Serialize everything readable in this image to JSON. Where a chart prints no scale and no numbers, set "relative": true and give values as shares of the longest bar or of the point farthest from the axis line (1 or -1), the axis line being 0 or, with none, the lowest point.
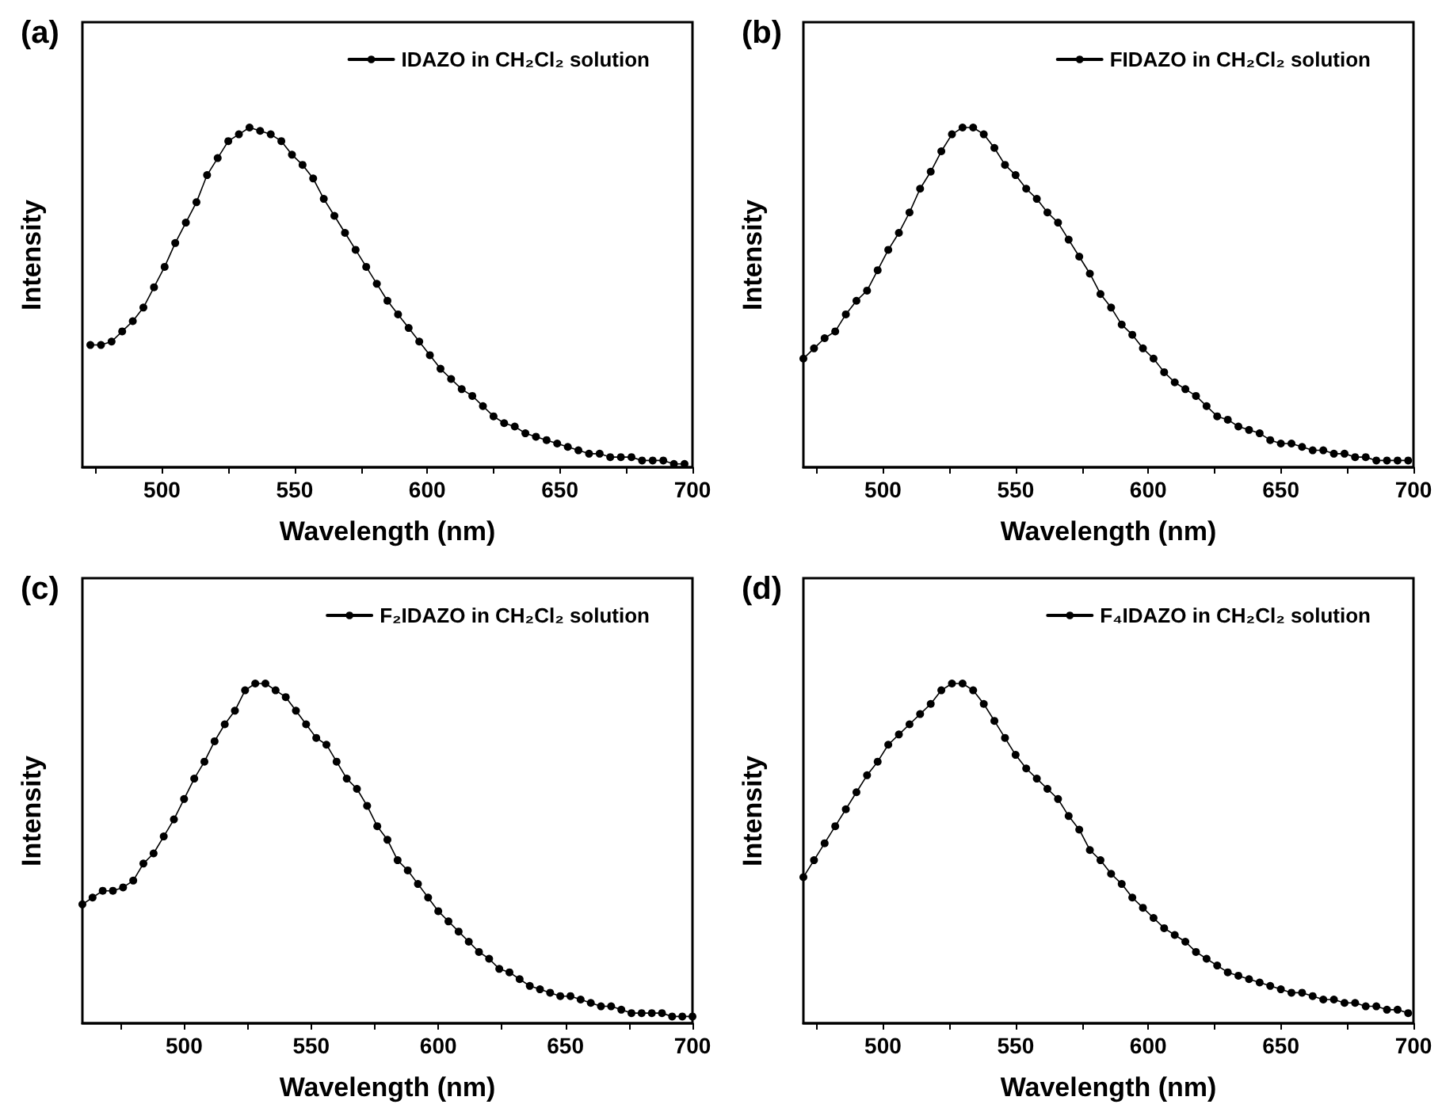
{
  "chart_data": [
    {
      "type": "line",
      "title": "(a)",
      "xlabel": "Wavelength (nm)",
      "ylabel": "Intensity",
      "relative": true,
      "legend": "top right",
      "marker": "circle",
      "line_style": "solid",
      "xlim": [
        470,
        700
      ],
      "xticks": [
        {
          "value": 475,
          "label": null
        },
        500,
        {
          "value": 525,
          "label": null
        },
        550,
        {
          "value": 575,
          "label": null
        },
        600,
        {
          "value": 625,
          "label": null
        },
        650,
        {
          "value": 675,
          "label": null
        },
        700
      ],
      "x": [
        473,
        477,
        481,
        485,
        489,
        493,
        497,
        501,
        505,
        509,
        513,
        517,
        521,
        525,
        529,
        533,
        537,
        541,
        545,
        549,
        553,
        557,
        561,
        565,
        569,
        573,
        577,
        581,
        585,
        589,
        593,
        597,
        601,
        605,
        609,
        613,
        617,
        621,
        625,
        629,
        633,
        637,
        641,
        645,
        649,
        653,
        657,
        661,
        665,
        669,
        673,
        677,
        681,
        685,
        689,
        693,
        697
      ],
      "series": [
        {
          "name": "IDAZO in CH₂Cl₂ solution",
          "color": "#000000",
          "values": [
            0.36,
            0.36,
            0.37,
            0.4,
            0.43,
            0.47,
            0.53,
            0.59,
            0.66,
            0.72,
            0.78,
            0.86,
            0.91,
            0.96,
            0.98,
            1.0,
            0.99,
            0.98,
            0.96,
            0.92,
            0.89,
            0.85,
            0.79,
            0.74,
            0.69,
            0.64,
            0.59,
            0.54,
            0.49,
            0.45,
            0.41,
            0.37,
            0.33,
            0.29,
            0.26,
            0.23,
            0.21,
            0.18,
            0.15,
            0.13,
            0.12,
            0.1,
            0.09,
            0.08,
            0.07,
            0.06,
            0.05,
            0.04,
            0.04,
            0.03,
            0.03,
            0.03,
            0.02,
            0.02,
            0.02,
            0.01,
            0.01
          ]
        }
      ]
    },
    {
      "type": "line",
      "title": "(b)",
      "xlabel": "Wavelength (nm)",
      "ylabel": "Intensity",
      "relative": true,
      "legend": "top right",
      "marker": "circle",
      "line_style": "solid",
      "xlim": [
        470,
        700
      ],
      "xticks": [
        {
          "value": 475,
          "label": null
        },
        500,
        {
          "value": 525,
          "label": null
        },
        550,
        {
          "value": 575,
          "label": null
        },
        600,
        {
          "value": 625,
          "label": null
        },
        650,
        {
          "value": 675,
          "label": null
        },
        700
      ],
      "x": [
        470,
        474,
        478,
        482,
        486,
        490,
        494,
        498,
        502,
        506,
        510,
        514,
        518,
        522,
        526,
        530,
        534,
        538,
        542,
        546,
        550,
        554,
        558,
        562,
        566,
        570,
        574,
        578,
        582,
        586,
        590,
        594,
        598,
        602,
        606,
        610,
        614,
        618,
        622,
        626,
        630,
        634,
        638,
        642,
        646,
        650,
        654,
        658,
        662,
        666,
        670,
        674,
        678,
        682,
        686,
        690,
        694,
        698
      ],
      "series": [
        {
          "name": "FIDAZO in CH₂Cl₂ solution",
          "color": "#000000",
          "values": [
            0.32,
            0.35,
            0.38,
            0.4,
            0.45,
            0.49,
            0.52,
            0.58,
            0.64,
            0.69,
            0.75,
            0.82,
            0.87,
            0.93,
            0.98,
            1.0,
            1.0,
            0.98,
            0.94,
            0.89,
            0.86,
            0.82,
            0.79,
            0.75,
            0.72,
            0.67,
            0.62,
            0.57,
            0.51,
            0.47,
            0.42,
            0.39,
            0.35,
            0.32,
            0.28,
            0.25,
            0.23,
            0.21,
            0.18,
            0.15,
            0.14,
            0.12,
            0.11,
            0.1,
            0.08,
            0.07,
            0.07,
            0.06,
            0.05,
            0.05,
            0.04,
            0.04,
            0.03,
            0.03,
            0.02,
            0.02,
            0.02,
            0.02
          ]
        }
      ]
    },
    {
      "type": "line",
      "title": "(c)",
      "xlabel": "Wavelength (nm)",
      "ylabel": "Intensity",
      "relative": true,
      "legend": "top right",
      "marker": "circle",
      "line_style": "solid",
      "xlim": [
        460,
        700
      ],
      "xticks": [
        {
          "value": 475,
          "label": null
        },
        500,
        {
          "value": 525,
          "label": null
        },
        550,
        {
          "value": 575,
          "label": null
        },
        600,
        {
          "value": 625,
          "label": null
        },
        650,
        {
          "value": 675,
          "label": null
        },
        700
      ],
      "x": [
        460,
        464,
        468,
        472,
        476,
        480,
        484,
        488,
        492,
        496,
        500,
        504,
        508,
        512,
        516,
        520,
        524,
        528,
        532,
        536,
        540,
        544,
        548,
        552,
        556,
        560,
        564,
        568,
        572,
        576,
        580,
        584,
        588,
        592,
        596,
        600,
        604,
        608,
        612,
        616,
        620,
        624,
        628,
        632,
        636,
        640,
        644,
        648,
        652,
        656,
        660,
        664,
        668,
        672,
        676,
        680,
        684,
        688,
        692,
        696,
        700
      ],
      "series": [
        {
          "name": "F₂IDAZO in CH₂Cl₂ solution",
          "color": "#000000",
          "values": [
            0.35,
            0.37,
            0.39,
            0.39,
            0.4,
            0.42,
            0.47,
            0.5,
            0.55,
            0.6,
            0.66,
            0.72,
            0.77,
            0.83,
            0.88,
            0.92,
            0.98,
            1.0,
            1.0,
            0.98,
            0.96,
            0.92,
            0.88,
            0.84,
            0.82,
            0.77,
            0.72,
            0.69,
            0.64,
            0.58,
            0.54,
            0.48,
            0.45,
            0.41,
            0.37,
            0.33,
            0.3,
            0.27,
            0.24,
            0.21,
            0.19,
            0.16,
            0.15,
            0.13,
            0.11,
            0.1,
            0.09,
            0.08,
            0.08,
            0.07,
            0.06,
            0.05,
            0.05,
            0.04,
            0.03,
            0.03,
            0.03,
            0.03,
            0.02,
            0.02,
            0.02
          ]
        }
      ]
    },
    {
      "type": "line",
      "title": "(d)",
      "xlabel": "Wavelength (nm)",
      "ylabel": "Intensity",
      "relative": true,
      "legend": "top right",
      "marker": "circle",
      "line_style": "solid",
      "xlim": [
        470,
        700
      ],
      "xticks": [
        {
          "value": 475,
          "label": null
        },
        500,
        {
          "value": 525,
          "label": null
        },
        550,
        {
          "value": 575,
          "label": null
        },
        600,
        {
          "value": 625,
          "label": null
        },
        650,
        {
          "value": 675,
          "label": null
        },
        700
      ],
      "x": [
        470,
        474,
        478,
        482,
        486,
        490,
        494,
        498,
        502,
        506,
        510,
        514,
        518,
        522,
        526,
        530,
        534,
        538,
        542,
        546,
        550,
        554,
        558,
        562,
        566,
        570,
        574,
        578,
        582,
        586,
        590,
        594,
        598,
        602,
        606,
        610,
        614,
        618,
        622,
        626,
        630,
        634,
        638,
        642,
        646,
        650,
        654,
        658,
        662,
        666,
        670,
        674,
        678,
        682,
        686,
        690,
        694,
        698
      ],
      "series": [
        {
          "name": "F₄IDAZO in CH₂Cl₂ solution",
          "color": "#000000",
          "values": [
            0.43,
            0.48,
            0.53,
            0.58,
            0.63,
            0.68,
            0.73,
            0.77,
            0.82,
            0.85,
            0.88,
            0.91,
            0.94,
            0.98,
            1.0,
            1.0,
            0.98,
            0.94,
            0.89,
            0.84,
            0.79,
            0.75,
            0.72,
            0.69,
            0.66,
            0.61,
            0.57,
            0.51,
            0.48,
            0.44,
            0.41,
            0.37,
            0.34,
            0.31,
            0.28,
            0.26,
            0.24,
            0.21,
            0.19,
            0.17,
            0.15,
            0.14,
            0.13,
            0.12,
            0.11,
            0.1,
            0.09,
            0.09,
            0.08,
            0.07,
            0.07,
            0.06,
            0.06,
            0.05,
            0.05,
            0.04,
            0.04,
            0.03
          ]
        }
      ]
    }
  ]
}
